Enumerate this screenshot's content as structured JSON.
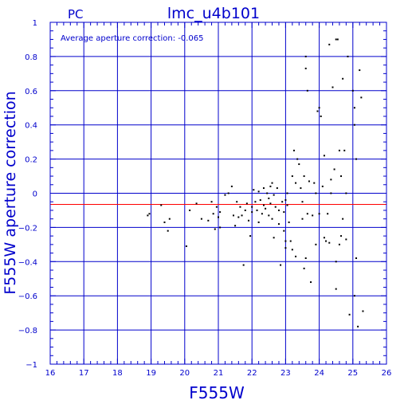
{
  "chart_data": {
    "type": "scatter",
    "title": "lmc_u4b101",
    "corner_label": "PC",
    "annotation": "Average aperture correction: -0.065",
    "xlabel": "F555W",
    "ylabel": "F555W aperture correction",
    "xlim": [
      16,
      26
    ],
    "ylim": [
      -1,
      1
    ],
    "xticks": [
      16,
      17,
      18,
      19,
      20,
      21,
      22,
      23,
      24,
      25,
      26
    ],
    "yticks": [
      -1,
      -0.8,
      -0.6,
      -0.4,
      -0.2,
      0,
      0.2,
      0.4,
      0.6,
      0.8,
      1
    ],
    "xtick_labels": [
      "16",
      "17",
      "18",
      "19",
      "20",
      "21",
      "22",
      "23",
      "24",
      "25",
      "26"
    ],
    "ytick_labels": [
      "−1",
      "−0.8",
      "−0.6",
      "−0.4",
      "−0.2",
      "0",
      "0.2",
      "0.4",
      "0.6",
      "0.8",
      "1"
    ],
    "grid": true,
    "reference_line": -0.065,
    "colors": {
      "axis": "#0000cc",
      "grid": "#0000cc",
      "reference": "#ff0000",
      "points": "#000000"
    },
    "points": [
      [
        18.9,
        -0.13
      ],
      [
        18.95,
        -0.12
      ],
      [
        19.3,
        -0.07
      ],
      [
        19.4,
        -0.17
      ],
      [
        19.5,
        -0.22
      ],
      [
        19.55,
        -0.15
      ],
      [
        20.05,
        -0.31
      ],
      [
        20.15,
        -0.1
      ],
      [
        20.35,
        -0.06
      ],
      [
        20.5,
        -0.15
      ],
      [
        20.7,
        -0.16
      ],
      [
        20.8,
        -0.05
      ],
      [
        20.85,
        -0.12
      ],
      [
        20.9,
        -0.21
      ],
      [
        20.95,
        -0.08
      ],
      [
        21.0,
        -0.14
      ],
      [
        21.05,
        -0.2
      ],
      [
        21.05,
        -0.11
      ],
      [
        21.2,
        -0.01
      ],
      [
        21.3,
        0.0
      ],
      [
        21.4,
        0.04
      ],
      [
        21.45,
        -0.13
      ],
      [
        21.5,
        -0.19
      ],
      [
        21.55,
        -0.05
      ],
      [
        21.6,
        -0.14
      ],
      [
        21.65,
        -0.08
      ],
      [
        21.7,
        -0.13
      ],
      [
        21.75,
        -0.42
      ],
      [
        21.8,
        -0.1
      ],
      [
        21.85,
        -0.06
      ],
      [
        21.9,
        -0.16
      ],
      [
        21.95,
        -0.25
      ],
      [
        22.0,
        -0.08
      ],
      [
        22.0,
        -0.11
      ],
      [
        22.05,
        0.02
      ],
      [
        22.1,
        -0.05
      ],
      [
        22.15,
        -0.1
      ],
      [
        22.2,
        -0.17
      ],
      [
        22.2,
        0.01
      ],
      [
        22.25,
        -0.04
      ],
      [
        22.3,
        -0.12
      ],
      [
        22.35,
        0.03
      ],
      [
        22.35,
        -0.07
      ],
      [
        22.4,
        -0.09
      ],
      [
        22.45,
        0.0
      ],
      [
        22.5,
        -0.13
      ],
      [
        22.5,
        -0.03
      ],
      [
        22.55,
        0.04
      ],
      [
        22.55,
        -0.06
      ],
      [
        22.6,
        -0.15
      ],
      [
        22.6,
        0.06
      ],
      [
        22.65,
        -0.01
      ],
      [
        22.65,
        -0.26
      ],
      [
        22.7,
        -0.08
      ],
      [
        22.75,
        0.03
      ],
      [
        22.8,
        -0.1
      ],
      [
        22.8,
        -0.18
      ],
      [
        22.85,
        -0.42
      ],
      [
        22.9,
        -0.05
      ],
      [
        22.95,
        -0.11
      ],
      [
        22.95,
        -0.22
      ],
      [
        23.0,
        -0.04
      ],
      [
        23.0,
        -0.28
      ],
      [
        23.0,
        -0.32
      ],
      [
        23.05,
        -0.07
      ],
      [
        23.05,
        0.0
      ],
      [
        23.1,
        -0.17
      ],
      [
        23.15,
        -0.28
      ],
      [
        23.2,
        0.1
      ],
      [
        23.2,
        -0.33
      ],
      [
        23.25,
        0.25
      ],
      [
        23.3,
        0.06
      ],
      [
        23.3,
        -0.37
      ],
      [
        23.35,
        0.2
      ],
      [
        23.4,
        0.17
      ],
      [
        23.45,
        0.03
      ],
      [
        23.5,
        -0.05
      ],
      [
        23.5,
        -0.15
      ],
      [
        23.55,
        0.1
      ],
      [
        23.55,
        -0.44
      ],
      [
        23.6,
        0.8
      ],
      [
        23.6,
        0.73
      ],
      [
        23.6,
        -0.38
      ],
      [
        23.65,
        0.6
      ],
      [
        23.65,
        -0.12
      ],
      [
        23.7,
        0.07
      ],
      [
        23.75,
        -0.52
      ],
      [
        23.8,
        -0.13
      ],
      [
        23.85,
        0.06
      ],
      [
        23.9,
        0.0
      ],
      [
        23.95,
        0.48
      ],
      [
        24.0,
        0.5
      ],
      [
        24.0,
        -0.12
      ],
      [
        24.05,
        0.45
      ],
      [
        24.1,
        0.04
      ],
      [
        24.15,
        0.22
      ],
      [
        24.2,
        -0.28
      ],
      [
        24.25,
        -0.12
      ],
      [
        24.3,
        0.87
      ],
      [
        24.3,
        -0.29
      ],
      [
        24.35,
        0.0
      ],
      [
        24.4,
        0.62
      ],
      [
        24.45,
        0.14
      ],
      [
        24.5,
        -0.4
      ],
      [
        24.5,
        -0.56
      ],
      [
        24.5,
        0.9
      ],
      [
        24.55,
        0.9
      ],
      [
        24.6,
        0.25
      ],
      [
        24.65,
        0.1
      ],
      [
        24.65,
        -0.25
      ],
      [
        24.7,
        0.67
      ],
      [
        24.75,
        0.25
      ],
      [
        24.8,
        0.0
      ],
      [
        24.8,
        -0.27
      ],
      [
        24.85,
        0.8
      ],
      [
        24.9,
        -0.71
      ],
      [
        25.0,
        0.6
      ],
      [
        25.05,
        0.5
      ],
      [
        25.05,
        -0.6
      ],
      [
        25.1,
        0.2
      ],
      [
        25.1,
        -0.38
      ],
      [
        25.15,
        -0.78
      ],
      [
        25.2,
        0.72
      ],
      [
        25.25,
        0.56
      ],
      [
        25.3,
        -0.69
      ],
      [
        25.05,
        0.4
      ],
      [
        24.15,
        -0.26
      ],
      [
        24.35,
        0.08
      ],
      [
        24.7,
        -0.15
      ],
      [
        23.9,
        -0.3
      ],
      [
        24.6,
        -0.3
      ]
    ]
  }
}
